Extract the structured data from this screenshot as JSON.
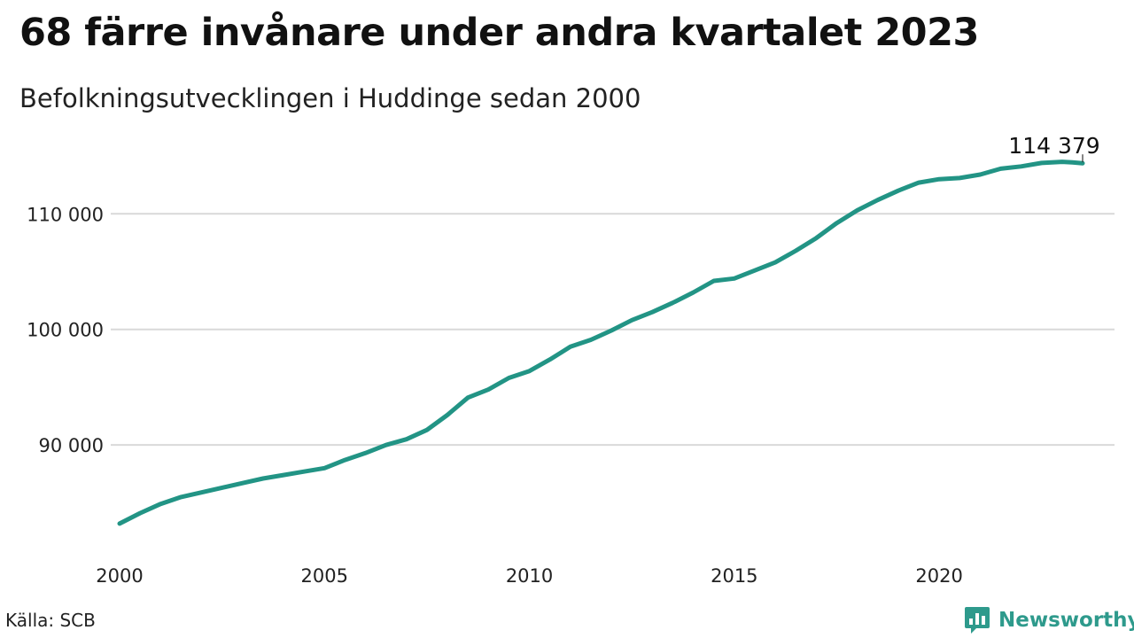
{
  "title": "68 färre invånare under andra kvartalet 2023",
  "subtitle": "Befolkningsutvecklingen i Huddinge sedan 2000",
  "source": "Källa: SCB",
  "brand": {
    "name": "Newsworthy",
    "icon": "newsworthy-logo-icon",
    "color": "#2e9a8c"
  },
  "chart_data": {
    "type": "line",
    "title": "68 färre invånare under andra kvartalet 2023",
    "subtitle": "Befolkningsutvecklingen i Huddinge sedan 2000",
    "xlabel": "",
    "ylabel": "",
    "xlim": [
      2000.0,
      2023.5
    ],
    "ylim": [
      82500,
      117000
    ],
    "x_ticks": [
      2000,
      2005,
      2010,
      2015,
      2020
    ],
    "y_ticks": [
      90000,
      100000,
      110000
    ],
    "y_tick_labels": [
      "90 000",
      "100 000",
      "110 000"
    ],
    "grid": "horizontal",
    "line_color": "#229485",
    "end_label": "114 379",
    "series": [
      {
        "x": [
          2000.0,
          2000.5,
          2001.0,
          2001.5,
          2002.0,
          2002.5,
          2003.0,
          2003.5,
          2004.0,
          2004.5,
          2005.0,
          2005.5,
          2006.0,
          2006.5,
          2007.0,
          2007.5,
          2008.0,
          2008.5,
          2009.0,
          2009.5,
          2010.0,
          2010.5,
          2011.0,
          2011.5,
          2012.0,
          2012.5,
          2013.0,
          2013.5,
          2014.0,
          2014.5,
          2015.0,
          2015.5,
          2016.0,
          2016.5,
          2017.0,
          2017.5,
          2018.0,
          2018.5,
          2019.0,
          2019.5,
          2020.0,
          2020.5,
          2021.0,
          2021.5,
          2022.0,
          2022.5,
          2023.0,
          2023.25,
          2023.5
        ],
        "values": [
          83200,
          84100,
          84900,
          85500,
          85900,
          86300,
          86700,
          87100,
          87400,
          87700,
          88000,
          88700,
          89300,
          90000,
          90500,
          91300,
          92600,
          94100,
          94800,
          95800,
          96400,
          97400,
          98500,
          99100,
          99900,
          100800,
          101500,
          102300,
          103200,
          104200,
          104400,
          105100,
          105800,
          106800,
          107900,
          109200,
          110300,
          111200,
          112000,
          112700,
          113000,
          113100,
          113400,
          113900,
          114100,
          114400,
          114500,
          114447,
          114379
        ]
      }
    ]
  }
}
